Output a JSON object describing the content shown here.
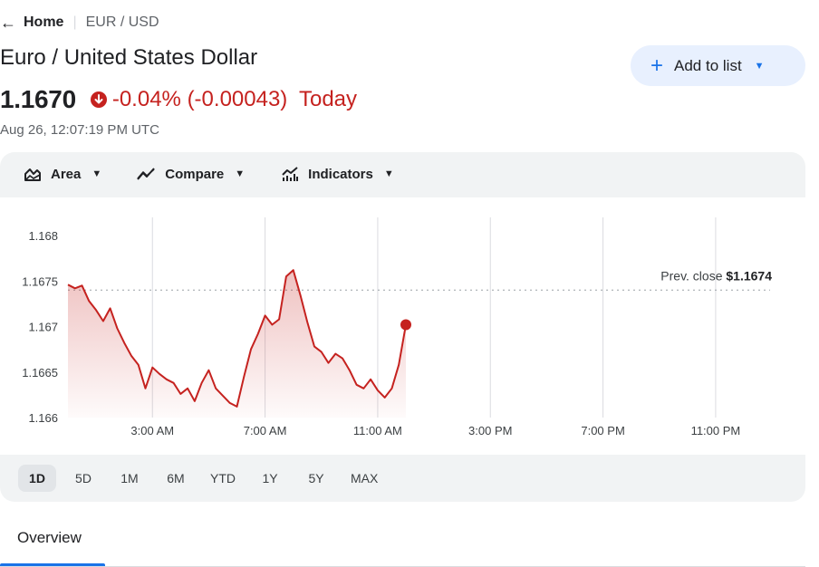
{
  "breadcrumb": {
    "home": "Home",
    "current": "EUR / USD"
  },
  "title": "Euro / United States Dollar",
  "add_button": {
    "label": "Add to list"
  },
  "quote": {
    "price": "1.1670",
    "change_percent": "-0.04%",
    "change_abs": "(-0.00043)",
    "period": "Today",
    "timestamp": "Aug 26, 12:07:19 PM UTC"
  },
  "toolbar": {
    "area": "Area",
    "compare": "Compare",
    "indicators": "Indicators"
  },
  "ranges": [
    "1D",
    "5D",
    "1M",
    "6M",
    "YTD",
    "1Y",
    "5Y",
    "MAX"
  ],
  "active_range": "1D",
  "tabs": {
    "overview": "Overview"
  },
  "colors": {
    "down": "#c5221f",
    "accent": "#1a73e8",
    "grid": "#dadce0"
  },
  "chart_data": {
    "type": "area",
    "prev_close_label": "Prev. close",
    "prev_close_value": "$1.1674",
    "prev_close": 1.1674,
    "y_ticks": [
      "1.168",
      "1.1675",
      "1.167",
      "1.1665",
      "1.166"
    ],
    "ylim": [
      1.166,
      1.168
    ],
    "x_ticks": [
      "3:00 AM",
      "7:00 AM",
      "11:00 AM",
      "3:00 PM",
      "7:00 PM",
      "11:00 PM"
    ],
    "x_tick_hours": [
      3,
      7,
      11,
      15,
      19,
      23
    ],
    "x_range_hours": [
      0,
      24
    ],
    "series": [
      {
        "x": [
          0,
          0.25,
          0.5,
          0.75,
          1,
          1.25,
          1.5,
          1.75,
          2,
          2.25,
          2.5,
          2.75,
          3,
          3.25,
          3.5,
          3.75,
          4,
          4.25,
          4.5,
          4.75,
          5,
          5.25,
          5.5,
          5.75,
          6,
          6.25,
          6.5,
          6.75,
          7,
          7.25,
          7.5,
          7.75,
          8,
          8.25,
          8.5,
          8.75,
          9,
          9.25,
          9.5,
          9.75,
          10,
          10.25,
          10.5,
          10.75,
          11,
          11.25,
          11.5,
          11.75,
          12
        ],
        "y": [
          1.16746,
          1.16742,
          1.16745,
          1.16728,
          1.16718,
          1.16706,
          1.1672,
          1.16698,
          1.16682,
          1.16668,
          1.16658,
          1.16632,
          1.16655,
          1.16648,
          1.16642,
          1.16638,
          1.16626,
          1.16632,
          1.16618,
          1.16638,
          1.16652,
          1.16632,
          1.16624,
          1.16616,
          1.16612,
          1.16645,
          1.16675,
          1.16692,
          1.16712,
          1.16702,
          1.16708,
          1.16755,
          1.16762,
          1.16735,
          1.16705,
          1.16678,
          1.16672,
          1.1666,
          1.1667,
          1.16665,
          1.16652,
          1.16636,
          1.16632,
          1.16642,
          1.1663,
          1.16622,
          1.16632,
          1.16658,
          1.16702
        ]
      }
    ]
  }
}
